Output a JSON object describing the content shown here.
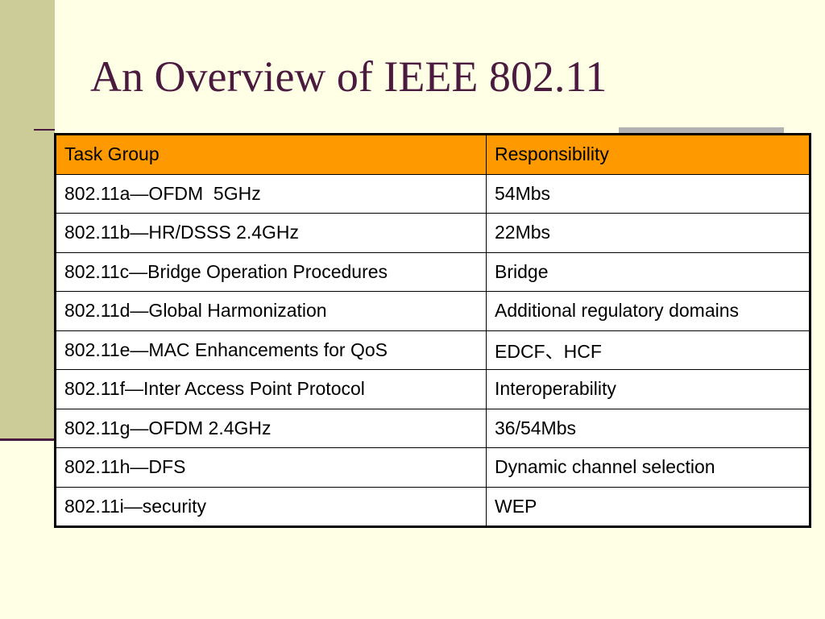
{
  "title": "An Overview of IEEE 802.11",
  "table": {
    "header": [
      "Task Group",
      "Responsibility"
    ],
    "rows": [
      [
        "802.11a—OFDM  5GHz",
        "54Mbs"
      ],
      [
        "802.11b—HR/DSSS 2.4GHz",
        "22Mbs"
      ],
      [
        "802.11c—Bridge Operation Procedures",
        "Bridge"
      ],
      [
        "802.11d—Global Harmonization",
        "Additional regulatory domains"
      ],
      [
        "802.11e—MAC Enhancements for QoS",
        "EDCF、HCF"
      ],
      [
        "802.11f—Inter Access Point Protocol",
        "Interoperability"
      ],
      [
        "802.11g—OFDM 2.4GHz",
        "36/54Mbs"
      ],
      [
        "802.11h—DFS",
        "Dynamic channel selection"
      ],
      [
        "802.11i—security",
        "WEP"
      ]
    ]
  }
}
